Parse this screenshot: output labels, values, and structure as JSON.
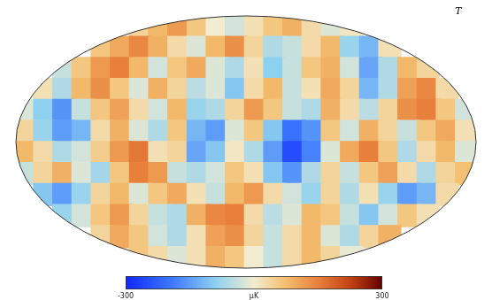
{
  "chart_data": {
    "type": "heatmap",
    "title": "T",
    "tick_labels": false,
    "cells": [
      [
        null,
        null,
        null,
        null,
        null,
        null,
        40,
        80,
        120,
        60,
        0,
        -30,
        20,
        60,
        90,
        30,
        -20,
        10,
        null,
        null,
        null,
        null,
        null,
        null
      ],
      [
        null,
        null,
        null,
        null,
        60,
        100,
        140,
        90,
        30,
        -20,
        80,
        130,
        40,
        -60,
        -40,
        30,
        80,
        -80,
        -120,
        20,
        null,
        null,
        null,
        null
      ],
      [
        null,
        null,
        -40,
        60,
        120,
        150,
        80,
        -30,
        60,
        100,
        -20,
        -60,
        20,
        -90,
        -40,
        60,
        90,
        -30,
        -140,
        -60,
        80,
        40,
        null,
        null
      ],
      [
        null,
        20,
        -60,
        80,
        130,
        60,
        -20,
        90,
        40,
        -50,
        -20,
        -100,
        30,
        80,
        -40,
        20,
        100,
        40,
        -120,
        -60,
        110,
        140,
        30,
        null
      ],
      [
        -20,
        -90,
        -160,
        -40,
        60,
        110,
        30,
        -30,
        80,
        -80,
        -60,
        40,
        120,
        60,
        -40,
        -60,
        90,
        30,
        -50,
        40,
        130,
        150,
        60,
        -30
      ],
      [
        40,
        -80,
        -150,
        -120,
        30,
        90,
        -20,
        -60,
        60,
        -120,
        -150,
        -20,
        60,
        -100,
        -200,
        -160,
        60,
        -30,
        90,
        40,
        -40,
        60,
        100,
        20
      ],
      [
        80,
        30,
        -60,
        -30,
        50,
        120,
        160,
        20,
        40,
        -140,
        -100,
        10,
        -60,
        -150,
        -250,
        -180,
        -20,
        100,
        150,
        60,
        -60,
        30,
        80,
        -20
      ],
      [
        -40,
        40,
        90,
        -20,
        -70,
        60,
        150,
        120,
        -40,
        -60,
        -30,
        60,
        20,
        -100,
        -160,
        -60,
        40,
        -40,
        60,
        110,
        30,
        -60,
        40,
        70
      ],
      [
        null,
        -100,
        -150,
        -80,
        40,
        80,
        -20,
        60,
        100,
        20,
        -40,
        80,
        120,
        30,
        -30,
        -80,
        40,
        -60,
        20,
        -80,
        -150,
        -120,
        30,
        null
      ],
      [
        null,
        null,
        -80,
        -30,
        60,
        120,
        40,
        -40,
        -60,
        90,
        140,
        150,
        30,
        -50,
        -20,
        80,
        60,
        -40,
        -100,
        -30,
        60,
        20,
        null,
        null
      ],
      [
        null,
        null,
        null,
        null,
        40,
        100,
        60,
        -30,
        -60,
        20,
        110,
        130,
        40,
        -40,
        30,
        80,
        -20,
        -60,
        40,
        90,
        null,
        null,
        null,
        null
      ],
      [
        null,
        null,
        null,
        null,
        null,
        null,
        60,
        30,
        -20,
        20,
        90,
        60,
        0,
        -40,
        30,
        80,
        40,
        -10,
        null,
        null,
        null,
        null,
        null,
        null
      ]
    ],
    "colorbar": {
      "range": [
        -300,
        300
      ],
      "ticks": [
        -300,
        300
      ],
      "label": "μK"
    }
  }
}
